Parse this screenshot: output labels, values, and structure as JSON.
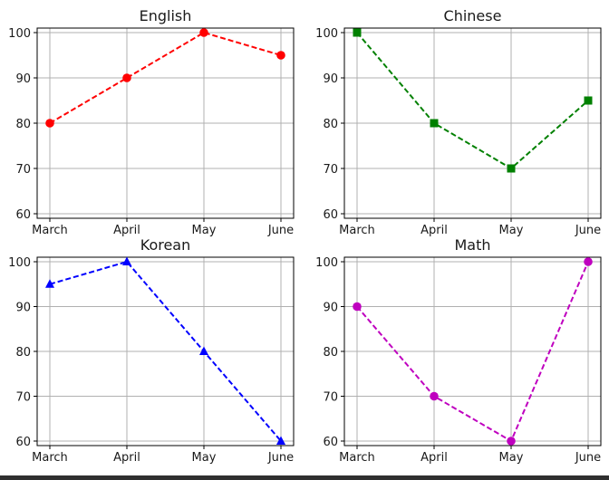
{
  "chart_data": [
    {
      "type": "line",
      "title": "English",
      "categories": [
        "March",
        "April",
        "May",
        "June"
      ],
      "series": [
        {
          "values": [
            80,
            90,
            100,
            95
          ],
          "color": "#ff0000",
          "marker": "circle",
          "linestyle": "dashed"
        }
      ],
      "ylim": [
        60,
        100
      ],
      "yticks": [
        60,
        70,
        80,
        90,
        100
      ],
      "grid": true
    },
    {
      "type": "line",
      "title": "Chinese",
      "categories": [
        "March",
        "April",
        "May",
        "June"
      ],
      "series": [
        {
          "values": [
            100,
            80,
            70,
            85
          ],
          "color": "#008000",
          "marker": "square",
          "linestyle": "dashed"
        }
      ],
      "ylim": [
        60,
        100
      ],
      "yticks": [
        60,
        70,
        80,
        90,
        100
      ],
      "grid": true
    },
    {
      "type": "line",
      "title": "Korean",
      "categories": [
        "March",
        "April",
        "May",
        "June"
      ],
      "series": [
        {
          "values": [
            95,
            100,
            80,
            60
          ],
          "color": "#0000ff",
          "marker": "triangle",
          "linestyle": "dashed"
        }
      ],
      "ylim": [
        60,
        100
      ],
      "yticks": [
        60,
        70,
        80,
        90,
        100
      ],
      "grid": true
    },
    {
      "type": "line",
      "title": "Math",
      "categories": [
        "March",
        "April",
        "May",
        "June"
      ],
      "series": [
        {
          "values": [
            90,
            70,
            60,
            100
          ],
          "color": "#bf00bf",
          "marker": "circle",
          "linestyle": "dashed"
        }
      ],
      "ylim": [
        60,
        100
      ],
      "yticks": [
        60,
        70,
        80,
        90,
        100
      ],
      "grid": true
    }
  ]
}
